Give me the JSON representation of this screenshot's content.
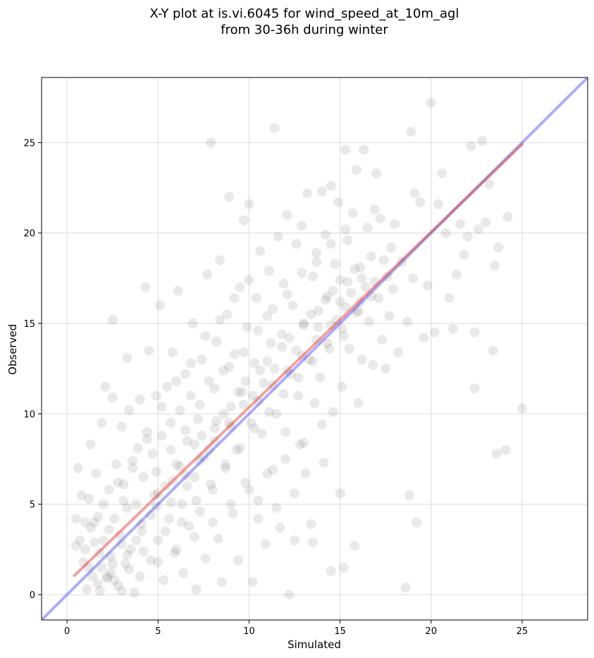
{
  "chart_data": {
    "type": "scatter",
    "title_line1": "X-Y plot at is.vi.6045 for wind_speed_at_10m_agl",
    "title_line2": "from 30-36h during winter",
    "xlabel": "Simulated",
    "ylabel": "Observed",
    "xlim": [
      -1.4,
      28.6
    ],
    "ylim": [
      -1.4,
      28.6
    ],
    "xticks": [
      0,
      5,
      10,
      15,
      20,
      25
    ],
    "yticks": [
      0,
      5,
      10,
      15,
      20,
      25
    ],
    "xtick_labels": [
      "0",
      "5",
      "10",
      "15",
      "20",
      "25"
    ],
    "ytick_labels": [
      "0",
      "5",
      "10",
      "15",
      "20",
      "25"
    ],
    "grid": true,
    "point_color": "#555555",
    "point_opacity": 0.13,
    "identity_line": {
      "color": "#3333ee",
      "from": [
        -1.4,
        -1.4
      ],
      "to": [
        28.6,
        28.6
      ]
    },
    "fit_line": {
      "color": "#e03030",
      "from": [
        0.4,
        1.05
      ],
      "to": [
        25.0,
        24.9
      ]
    },
    "points": [
      [
        0.5,
        4.2
      ],
      [
        0.5,
        2.7
      ],
      [
        0.6,
        7.0
      ],
      [
        0.7,
        3.0
      ],
      [
        0.8,
        5.5
      ],
      [
        0.9,
        1.8
      ],
      [
        1.0,
        4.0
      ],
      [
        1.0,
        2.5
      ],
      [
        1.1,
        0.3
      ],
      [
        1.2,
        5.3
      ],
      [
        1.3,
        8.3
      ],
      [
        1.3,
        3.7
      ],
      [
        1.4,
        1.0
      ],
      [
        1.5,
        2.9
      ],
      [
        1.6,
        6.7
      ],
      [
        1.7,
        4.3
      ],
      [
        1.8,
        0.2
      ],
      [
        1.9,
        1.5
      ],
      [
        1.9,
        9.5
      ],
      [
        2.0,
        3.0
      ],
      [
        2.1,
        11.5
      ],
      [
        2.2,
        0.9
      ],
      [
        2.3,
        5.8
      ],
      [
        2.4,
        2.1
      ],
      [
        2.4,
        1.2
      ],
      [
        2.5,
        15.2
      ],
      [
        2.5,
        10.9
      ],
      [
        2.6,
        4.2
      ],
      [
        2.7,
        7.2
      ],
      [
        2.8,
        0.5
      ],
      [
        2.9,
        3.3
      ],
      [
        3.0,
        9.3
      ],
      [
        3.1,
        6.1
      ],
      [
        3.2,
        1.7
      ],
      [
        3.3,
        13.1
      ],
      [
        3.3,
        4.8
      ],
      [
        3.4,
        10.2
      ],
      [
        3.5,
        2.5
      ],
      [
        3.6,
        7.4
      ],
      [
        3.7,
        0.1
      ],
      [
        3.8,
        5.0
      ],
      [
        3.9,
        8.1
      ],
      [
        4.0,
        10.8
      ],
      [
        4.1,
        3.5
      ],
      [
        4.2,
        6.5
      ],
      [
        4.3,
        17.0
      ],
      [
        4.4,
        9.0
      ],
      [
        4.5,
        13.5
      ],
      [
        4.6,
        1.9
      ],
      [
        4.7,
        7.8
      ],
      [
        4.8,
        5.5
      ],
      [
        4.9,
        11.0
      ],
      [
        5.0,
        3.0
      ],
      [
        5.1,
        16.0
      ],
      [
        5.2,
        8.8
      ],
      [
        5.3,
        0.8
      ],
      [
        5.4,
        6.0
      ],
      [
        5.5,
        11.5
      ],
      [
        5.6,
        4.2
      ],
      [
        5.7,
        9.5
      ],
      [
        5.8,
        13.4
      ],
      [
        5.9,
        2.3
      ],
      [
        6.0,
        7.2
      ],
      [
        6.1,
        16.8
      ],
      [
        6.2,
        10.2
      ],
      [
        6.3,
        5.0
      ],
      [
        6.4,
        1.2
      ],
      [
        6.5,
        12.2
      ],
      [
        6.6,
        8.5
      ],
      [
        6.7,
        3.8
      ],
      [
        6.8,
        11.0
      ],
      [
        6.9,
        15.0
      ],
      [
        7.0,
        6.5
      ],
      [
        7.1,
        0.3
      ],
      [
        7.2,
        9.7
      ],
      [
        7.3,
        4.6
      ],
      [
        7.4,
        13.0
      ],
      [
        7.5,
        7.6
      ],
      [
        7.6,
        2.0
      ],
      [
        7.7,
        17.7
      ],
      [
        7.8,
        11.8
      ],
      [
        7.9,
        25.0
      ],
      [
        8.0,
        5.8
      ],
      [
        8.1,
        9.2
      ],
      [
        8.2,
        14.0
      ],
      [
        8.3,
        3.1
      ],
      [
        8.4,
        18.5
      ],
      [
        8.5,
        0.7
      ],
      [
        8.6,
        12.4
      ],
      [
        8.7,
        7.0
      ],
      [
        8.8,
        15.5
      ],
      [
        8.9,
        22.0
      ],
      [
        9.0,
        10.4
      ],
      [
        9.1,
        4.5
      ],
      [
        9.2,
        13.3
      ],
      [
        9.3,
        8.0
      ],
      [
        9.4,
        1.9
      ],
      [
        9.5,
        17.0
      ],
      [
        9.6,
        11.2
      ],
      [
        9.7,
        20.7
      ],
      [
        9.8,
        6.2
      ],
      [
        9.9,
        14.8
      ],
      [
        10.0,
        21.6
      ],
      [
        10.1,
        9.5
      ],
      [
        10.2,
        0.7
      ],
      [
        10.3,
        12.8
      ],
      [
        10.4,
        16.4
      ],
      [
        10.5,
        5.2
      ],
      [
        10.6,
        19.0
      ],
      [
        10.7,
        8.9
      ],
      [
        10.8,
        11.7
      ],
      [
        10.9,
        2.8
      ],
      [
        11.0,
        15.4
      ],
      [
        11.1,
        17.9
      ],
      [
        11.2,
        13.9
      ],
      [
        11.3,
        6.9
      ],
      [
        11.4,
        25.8
      ],
      [
        11.5,
        10.0
      ],
      [
        11.6,
        19.8
      ],
      [
        11.7,
        3.7
      ],
      [
        11.8,
        14.4
      ],
      [
        11.9,
        17.2
      ],
      [
        12.0,
        9.0
      ],
      [
        12.1,
        21.0
      ],
      [
        12.2,
        0.0
      ],
      [
        12.3,
        12.2
      ],
      [
        12.4,
        16.0
      ],
      [
        12.5,
        5.6
      ],
      [
        12.6,
        19.4
      ],
      [
        12.7,
        11.0
      ],
      [
        12.8,
        8.3
      ],
      [
        12.9,
        20.4
      ],
      [
        13.0,
        14.9
      ],
      [
        13.1,
        6.7
      ],
      [
        13.2,
        22.2
      ],
      [
        13.3,
        13.0
      ],
      [
        13.4,
        3.9
      ],
      [
        13.5,
        17.6
      ],
      [
        13.6,
        10.6
      ],
      [
        13.7,
        18.9
      ],
      [
        13.8,
        15.7
      ],
      [
        13.9,
        12.0
      ],
      [
        14.0,
        22.3
      ],
      [
        14.1,
        7.3
      ],
      [
        14.2,
        19.9
      ],
      [
        14.3,
        16.5
      ],
      [
        14.4,
        13.6
      ],
      [
        14.5,
        22.6
      ],
      [
        14.6,
        10.1
      ],
      [
        14.7,
        18.3
      ],
      [
        14.8,
        15.2
      ],
      [
        14.9,
        21.7
      ],
      [
        15.0,
        17.4
      ],
      [
        15.1,
        11.5
      ],
      [
        15.2,
        14.3
      ],
      [
        15.3,
        24.6
      ],
      [
        15.4,
        19.6
      ],
      [
        15.5,
        13.6
      ],
      [
        15.6,
        16.7
      ],
      [
        15.7,
        21.1
      ],
      [
        15.8,
        2.7
      ],
      [
        15.9,
        23.5
      ],
      [
        16.0,
        15.7
      ],
      [
        16.1,
        18.1
      ],
      [
        16.2,
        13.0
      ],
      [
        16.3,
        24.6
      ],
      [
        16.4,
        17.0
      ],
      [
        16.5,
        20.3
      ],
      [
        16.6,
        15.1
      ],
      [
        16.7,
        18.7
      ],
      [
        16.8,
        12.7
      ],
      [
        16.9,
        21.3
      ],
      [
        17.0,
        23.3
      ],
      [
        17.1,
        16.4
      ],
      [
        17.2,
        20.8
      ],
      [
        17.3,
        14.1
      ],
      [
        17.4,
        18.5
      ],
      [
        17.5,
        12.5
      ],
      [
        17.6,
        17.6
      ],
      [
        17.7,
        15.4
      ],
      [
        17.8,
        19.2
      ],
      [
        17.9,
        16.9
      ],
      [
        18.0,
        20.5
      ],
      [
        18.2,
        13.4
      ],
      [
        18.4,
        18.4
      ],
      [
        18.6,
        0.4
      ],
      [
        18.7,
        15.1
      ],
      [
        18.8,
        5.5
      ],
      [
        18.9,
        25.6
      ],
      [
        19.0,
        17.5
      ],
      [
        19.1,
        22.2
      ],
      [
        19.2,
        4.0
      ],
      [
        19.4,
        21.7
      ],
      [
        19.6,
        14.2
      ],
      [
        19.8,
        17.1
      ],
      [
        20.0,
        27.2
      ],
      [
        20.2,
        14.5
      ],
      [
        20.4,
        21.6
      ],
      [
        20.6,
        23.3
      ],
      [
        20.8,
        20.0
      ],
      [
        21.0,
        16.4
      ],
      [
        21.2,
        14.7
      ],
      [
        21.4,
        17.7
      ],
      [
        21.6,
        20.5
      ],
      [
        21.8,
        18.8
      ],
      [
        22.0,
        19.8
      ],
      [
        22.2,
        24.8
      ],
      [
        22.4,
        14.5
      ],
      [
        22.4,
        11.4
      ],
      [
        22.6,
        20.2
      ],
      [
        22.8,
        25.1
      ],
      [
        23.0,
        20.6
      ],
      [
        23.2,
        22.7
      ],
      [
        23.4,
        13.5
      ],
      [
        23.5,
        18.2
      ],
      [
        23.6,
        7.8
      ],
      [
        23.7,
        19.2
      ],
      [
        24.1,
        8.0
      ],
      [
        24.2,
        20.9
      ],
      [
        25.0,
        10.3
      ],
      [
        1.2,
        1.5
      ],
      [
        1.8,
        2.3
      ],
      [
        2.2,
        1.0
      ],
      [
        2.6,
        0.8
      ],
      [
        3.0,
        2.8
      ],
      [
        3.4,
        1.4
      ],
      [
        3.8,
        3.0
      ],
      [
        4.2,
        2.4
      ],
      [
        4.6,
        4.4
      ],
      [
        5.0,
        5.6
      ],
      [
        5.4,
        3.5
      ],
      [
        5.8,
        6.3
      ],
      [
        6.2,
        7.1
      ],
      [
        6.6,
        6.0
      ],
      [
        7.0,
        8.3
      ],
      [
        7.4,
        8.8
      ],
      [
        7.8,
        8.0
      ],
      [
        8.2,
        9.6
      ],
      [
        8.6,
        10.0
      ],
      [
        9.0,
        9.3
      ],
      [
        9.4,
        11.2
      ],
      [
        9.8,
        11.8
      ],
      [
        10.2,
        11.0
      ],
      [
        10.6,
        12.4
      ],
      [
        11.0,
        12.9
      ],
      [
        11.4,
        12.5
      ],
      [
        11.8,
        13.7
      ],
      [
        12.2,
        14.2
      ],
      [
        12.6,
        13.5
      ],
      [
        13.0,
        15.0
      ],
      [
        13.4,
        15.5
      ],
      [
        13.8,
        14.8
      ],
      [
        14.2,
        16.3
      ],
      [
        14.6,
        16.8
      ],
      [
        15.0,
        16.2
      ],
      [
        15.4,
        17.3
      ],
      [
        15.8,
        18.0
      ],
      [
        16.2,
        17.5
      ],
      [
        1.5,
        4.0
      ],
      [
        2.0,
        5.0
      ],
      [
        2.8,
        6.2
      ],
      [
        3.6,
        7.0
      ],
      [
        4.4,
        8.6
      ],
      [
        5.2,
        10.4
      ],
      [
        6.0,
        11.8
      ],
      [
        6.8,
        12.8
      ],
      [
        7.6,
        14.3
      ],
      [
        8.4,
        15.2
      ],
      [
        9.2,
        16.4
      ],
      [
        10.0,
        17.4
      ],
      [
        3.0,
        0.2
      ],
      [
        4.0,
        1.0
      ],
      [
        5.0,
        1.8
      ],
      [
        6.0,
        2.5
      ],
      [
        7.0,
        3.2
      ],
      [
        8.0,
        4.0
      ],
      [
        9.0,
        5.0
      ],
      [
        10.0,
        5.8
      ],
      [
        11.0,
        6.7
      ],
      [
        12.0,
        7.5
      ],
      [
        13.0,
        8.4
      ],
      [
        14.0,
        9.4
      ],
      [
        15.0,
        5.6
      ],
      [
        16.0,
        10.6
      ],
      [
        10.5,
        4.2
      ],
      [
        11.5,
        4.8
      ],
      [
        12.5,
        3.0
      ],
      [
        13.5,
        2.9
      ],
      [
        14.5,
        1.3
      ],
      [
        15.2,
        1.5
      ],
      [
        2.3,
        3.6
      ],
      [
        3.1,
        5.2
      ],
      [
        4.9,
        6.8
      ],
      [
        5.7,
        8.0
      ],
      [
        6.5,
        9.1
      ],
      [
        7.3,
        10.5
      ],
      [
        8.1,
        11.4
      ],
      [
        8.9,
        12.6
      ],
      [
        9.7,
        13.4
      ],
      [
        10.5,
        14.6
      ],
      [
        11.3,
        15.8
      ],
      [
        12.1,
        16.6
      ],
      [
        12.9,
        17.8
      ],
      [
        13.7,
        18.4
      ],
      [
        14.5,
        19.4
      ],
      [
        15.3,
        20.2
      ],
      [
        6.3,
        4.0
      ],
      [
        7.1,
        5.2
      ],
      [
        7.9,
        6.1
      ],
      [
        8.7,
        7.2
      ],
      [
        9.5,
        8.1
      ],
      [
        10.3,
        9.2
      ],
      [
        11.1,
        10.1
      ],
      [
        11.9,
        11.1
      ],
      [
        12.7,
        12.0
      ],
      [
        13.5,
        12.9
      ],
      [
        14.3,
        13.9
      ],
      [
        15.1,
        14.7
      ],
      [
        15.9,
        15.6
      ],
      [
        16.7,
        16.5
      ],
      [
        1.7,
        0.6
      ],
      [
        2.5,
        1.7
      ],
      [
        3.3,
        2.2
      ],
      [
        4.1,
        3.9
      ],
      [
        4.9,
        4.9
      ],
      [
        5.7,
        5.1
      ],
      [
        6.5,
        6.6
      ],
      [
        7.3,
        7.4
      ],
      [
        8.1,
        8.5
      ],
      [
        8.9,
        9.5
      ],
      [
        9.7,
        10.5
      ],
      [
        10.5,
        10.7
      ],
      [
        11.3,
        11.6
      ],
      [
        12.1,
        12.4
      ],
      [
        12.9,
        13.2
      ],
      [
        13.7,
        14.1
      ],
      [
        14.5,
        14.9
      ],
      [
        15.3,
        15.9
      ],
      [
        16.1,
        16.2
      ],
      [
        16.9,
        17.3
      ]
    ]
  }
}
